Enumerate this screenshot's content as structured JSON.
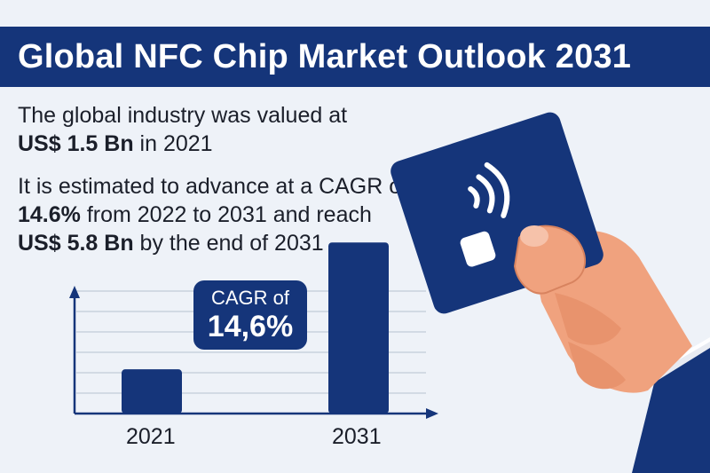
{
  "title": "Global NFC Chip Market Outlook 2031",
  "para1": {
    "line1": "The global industry was valued at",
    "value": "US$ 1.5 Bn",
    "suffix": " in 2021"
  },
  "para2": {
    "prefix": "It is estimated to advance at a CAGR of ",
    "cagr": "14.6%",
    "middle": " from 2022 to 2031 and reach ",
    "value": "US$ 5.8 Bn",
    "suffix": " by the end of 2031"
  },
  "badge": {
    "line1": "CAGR of",
    "line2": "14,6%"
  },
  "chart_data": {
    "type": "bar",
    "categories": [
      "2021",
      "2031"
    ],
    "values": [
      1.5,
      5.8
    ],
    "ylim": [
      0,
      6.5
    ],
    "grid": true
  },
  "colors": {
    "navy": "#15357a",
    "background": "#eef2f8",
    "skin": "#f0a27e"
  },
  "icons": {
    "card": "nfc-card-icon",
    "contactless": "contactless-icon"
  }
}
